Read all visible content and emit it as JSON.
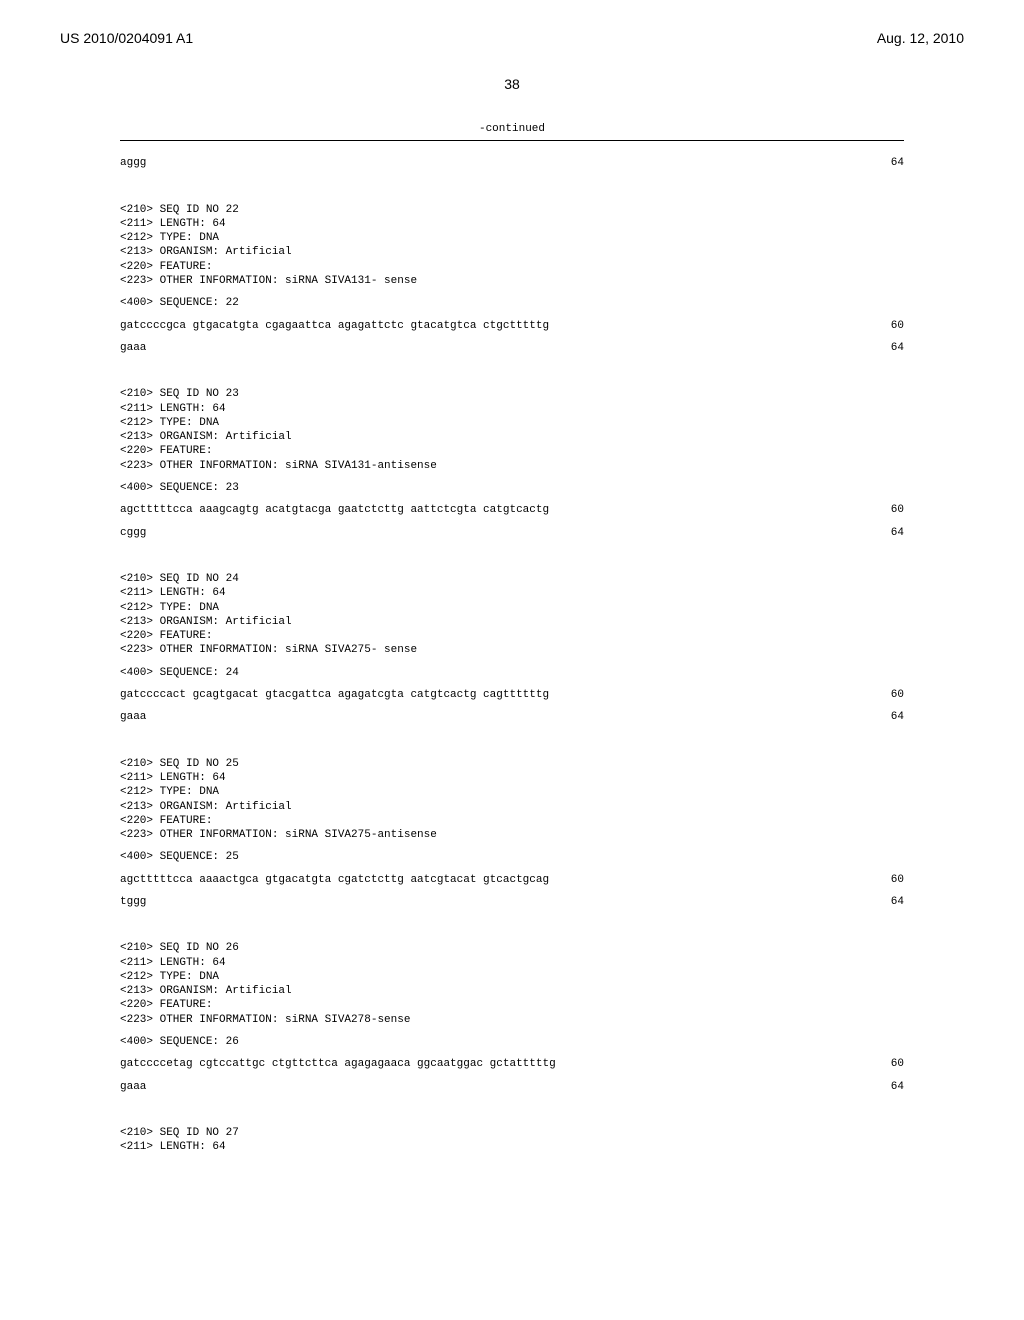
{
  "header": {
    "publication_number": "US 2010/0204091 A1",
    "date": "Aug. 12, 2010",
    "page_number": "38"
  },
  "continued_label": "-continued",
  "sequences": [
    {
      "lines": [
        {
          "text": "aggg",
          "num": "64"
        }
      ]
    },
    {
      "meta": [
        "<210> SEQ ID NO 22",
        "<211> LENGTH: 64",
        "<212> TYPE: DNA",
        "<213> ORGANISM: Artificial",
        "<220> FEATURE:",
        "<223> OTHER INFORMATION: siRNA SIVA131- sense"
      ],
      "sequence_label": "<400> SEQUENCE: 22",
      "lines": [
        {
          "text": "gatccccgca gtgacatgta cgagaattca agagattctc gtacatgtca ctgctttttg",
          "num": "60"
        },
        {
          "text": "gaaa",
          "num": "64"
        }
      ]
    },
    {
      "meta": [
        "<210> SEQ ID NO 23",
        "<211> LENGTH: 64",
        "<212> TYPE: DNA",
        "<213> ORGANISM: Artificial",
        "<220> FEATURE:",
        "<223> OTHER INFORMATION: siRNA SIVA131-antisense"
      ],
      "sequence_label": "<400> SEQUENCE: 23",
      "lines": [
        {
          "text": "agctttttcca aaagcagtg acatgtacga gaatctcttg aattctcgta catgtcactg",
          "num": "60"
        },
        {
          "text": "cggg",
          "num": "64"
        }
      ]
    },
    {
      "meta": [
        "<210> SEQ ID NO 24",
        "<211> LENGTH: 64",
        "<212> TYPE: DNA",
        "<213> ORGANISM: Artificial",
        "<220> FEATURE:",
        "<223> OTHER INFORMATION: siRNA SIVA275- sense"
      ],
      "sequence_label": "<400> SEQUENCE: 24",
      "lines": [
        {
          "text": "gatccccact gcagtgacat gtacgattca agagatcgta catgtcactg cagttttttg",
          "num": "60"
        },
        {
          "text": "gaaa",
          "num": "64"
        }
      ]
    },
    {
      "meta": [
        "<210> SEQ ID NO 25",
        "<211> LENGTH: 64",
        "<212> TYPE: DNA",
        "<213> ORGANISM: Artificial",
        "<220> FEATURE:",
        "<223> OTHER INFORMATION: siRNA SIVA275-antisense"
      ],
      "sequence_label": "<400> SEQUENCE: 25",
      "lines": [
        {
          "text": "agctttttcca aaaactgca gtgacatgta cgatctcttg aatcgtacat gtcactgcag",
          "num": "60"
        },
        {
          "text": "tggg",
          "num": "64"
        }
      ]
    },
    {
      "meta": [
        "<210> SEQ ID NO 26",
        "<211> LENGTH: 64",
        "<212> TYPE: DNA",
        "<213> ORGANISM: Artificial",
        "<220> FEATURE:",
        "<223> OTHER INFORMATION: siRNA SIVA278-sense"
      ],
      "sequence_label": "<400> SEQUENCE: 26",
      "lines": [
        {
          "text": "gatccccetag cgtccattgc ctgttcttca agagagaaca ggcaatggac gctatttttg",
          "num": "60"
        },
        {
          "text": "gaaa",
          "num": "64"
        }
      ]
    },
    {
      "meta": [
        "<210> SEQ ID NO 27",
        "<211> LENGTH: 64"
      ]
    }
  ]
}
